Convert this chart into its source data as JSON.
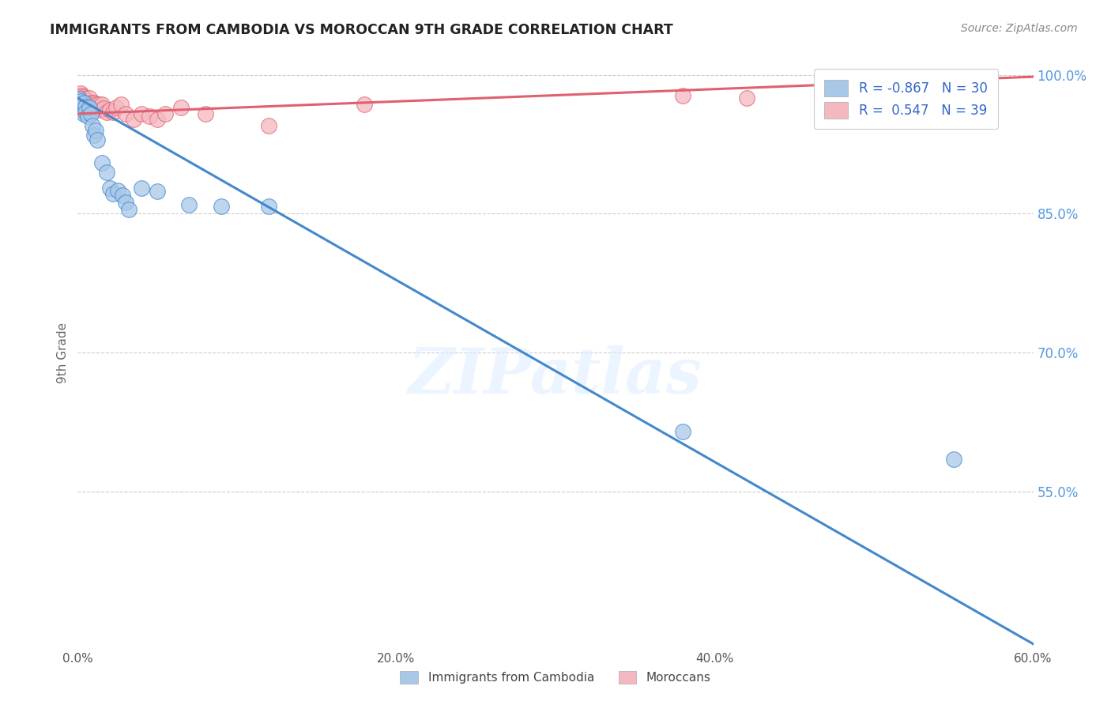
{
  "title": "IMMIGRANTS FROM CAMBODIA VS MOROCCAN 9TH GRADE CORRELATION CHART",
  "source": "Source: ZipAtlas.com",
  "ylabel_label": "9th Grade",
  "legend_labels": [
    "Immigrants from Cambodia",
    "Moroccans"
  ],
  "legend_R": [
    "-0.867",
    "0.547"
  ],
  "legend_N": [
    "30",
    "39"
  ],
  "blue_color": "#a8c8e8",
  "pink_color": "#f4b8c0",
  "blue_line_color": "#4488cc",
  "pink_line_color": "#e06070",
  "blue_scatter_x": [
    0.001,
    0.002,
    0.003,
    0.003,
    0.004,
    0.004,
    0.005,
    0.005,
    0.006,
    0.007,
    0.008,
    0.009,
    0.01,
    0.011,
    0.012,
    0.015,
    0.018,
    0.02,
    0.022,
    0.025,
    0.028,
    0.03,
    0.032,
    0.04,
    0.05,
    0.07,
    0.09,
    0.12,
    0.38,
    0.55
  ],
  "blue_scatter_y": [
    0.974,
    0.972,
    0.968,
    0.964,
    0.97,
    0.958,
    0.966,
    0.96,
    0.955,
    0.965,
    0.958,
    0.945,
    0.935,
    0.94,
    0.93,
    0.905,
    0.895,
    0.878,
    0.872,
    0.875,
    0.87,
    0.862,
    0.855,
    0.878,
    0.874,
    0.86,
    0.858,
    0.858,
    0.615,
    0.585
  ],
  "pink_scatter_x": [
    0.001,
    0.001,
    0.002,
    0.002,
    0.002,
    0.003,
    0.003,
    0.004,
    0.004,
    0.005,
    0.005,
    0.006,
    0.007,
    0.008,
    0.009,
    0.01,
    0.011,
    0.012,
    0.013,
    0.014,
    0.015,
    0.016,
    0.018,
    0.02,
    0.022,
    0.024,
    0.027,
    0.03,
    0.035,
    0.04,
    0.045,
    0.05,
    0.055,
    0.065,
    0.08,
    0.12,
    0.18,
    0.38,
    0.42
  ],
  "pink_scatter_y": [
    0.978,
    0.975,
    0.98,
    0.976,
    0.972,
    0.978,
    0.974,
    0.976,
    0.972,
    0.974,
    0.97,
    0.972,
    0.975,
    0.97,
    0.968,
    0.97,
    0.968,
    0.965,
    0.968,
    0.962,
    0.968,
    0.964,
    0.96,
    0.962,
    0.96,
    0.965,
    0.968,
    0.958,
    0.952,
    0.958,
    0.955,
    0.952,
    0.958,
    0.965,
    0.958,
    0.945,
    0.968,
    0.978,
    0.975
  ],
  "xlim": [
    0.0,
    0.6
  ],
  "ylim": [
    0.38,
    1.02
  ],
  "yticks": [
    1.0,
    0.85,
    0.7,
    0.55
  ],
  "ytick_labels": [
    "100.0%",
    "85.0%",
    "70.0%",
    "55.0%"
  ],
  "xticks": [
    0.0,
    0.1,
    0.2,
    0.3,
    0.4,
    0.5,
    0.6
  ],
  "xtick_labels": [
    "0.0%",
    "",
    "20.0%",
    "",
    "40.0%",
    "",
    "60.0%"
  ],
  "blue_trendline_x": [
    0.0,
    0.6
  ],
  "blue_trendline_y": [
    0.975,
    0.385
  ],
  "pink_trendline_x": [
    0.0,
    0.6
  ],
  "pink_trendline_y": [
    0.958,
    0.998
  ]
}
